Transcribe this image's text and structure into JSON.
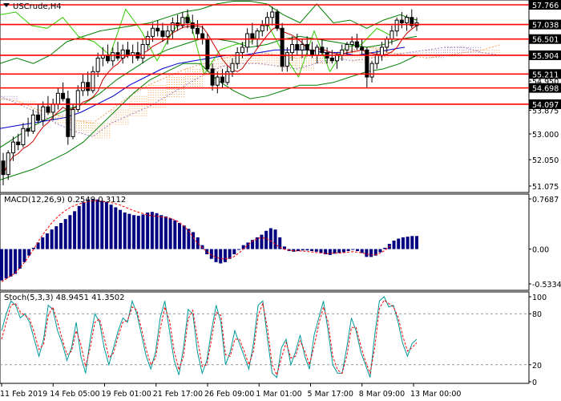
{
  "chart_data": [
    {
      "type": "line",
      "pane": "main",
      "title": "USCrude,H4",
      "price_axis": {
        "ticks": [
          "57.766",
          "57.038",
          "56.501",
          "55.904",
          "55.211",
          "54.950",
          "54.698",
          "54.097",
          "53.875",
          "53.000",
          "52.050",
          "51.075"
        ],
        "boxed": [
          "57.766",
          "57.038",
          "56.501",
          "55.904",
          "55.211",
          "54.698",
          "54.097"
        ],
        "ylim": [
          51.075,
          57.766
        ]
      },
      "horizontal_levels": [
        57.766,
        57.038,
        56.501,
        55.904,
        55.211,
        54.698,
        54.097
      ],
      "candles": [
        [
          52.0,
          52.3,
          51.1,
          51.5
        ],
        [
          51.5,
          52.4,
          51.3,
          52.3
        ],
        [
          52.3,
          52.9,
          52.0,
          52.7
        ],
        [
          52.7,
          53.0,
          52.4,
          52.6
        ],
        [
          52.6,
          53.4,
          52.5,
          53.2
        ],
        [
          53.2,
          53.6,
          52.9,
          53.1
        ],
        [
          53.1,
          53.9,
          53.0,
          53.7
        ],
        [
          53.7,
          54.1,
          53.4,
          53.5
        ],
        [
          53.5,
          54.2,
          53.3,
          54.0
        ],
        [
          54.0,
          54.4,
          53.7,
          53.8
        ],
        [
          53.8,
          54.3,
          53.5,
          54.1
        ],
        [
          54.1,
          54.7,
          53.9,
          54.5
        ],
        [
          54.5,
          54.9,
          54.2,
          54.3
        ],
        [
          54.3,
          54.6,
          52.6,
          52.9
        ],
        [
          52.9,
          54.1,
          52.8,
          53.9
        ],
        [
          53.9,
          54.8,
          53.8,
          54.6
        ],
        [
          54.6,
          55.2,
          54.4,
          54.9
        ],
        [
          54.9,
          55.3,
          54.4,
          54.6
        ],
        [
          54.6,
          55.5,
          54.5,
          55.3
        ],
        [
          55.3,
          56.0,
          55.1,
          55.8
        ],
        [
          55.8,
          56.2,
          55.5,
          55.9
        ],
        [
          55.9,
          56.3,
          55.6,
          55.7
        ],
        [
          55.7,
          56.2,
          55.5,
          56.0
        ],
        [
          56.0,
          56.4,
          55.7,
          55.8
        ],
        [
          55.8,
          56.3,
          55.6,
          56.1
        ],
        [
          56.1,
          56.4,
          55.8,
          55.9
        ],
        [
          55.9,
          56.3,
          55.6,
          56.0
        ],
        [
          56.0,
          56.4,
          55.7,
          55.8
        ],
        [
          55.8,
          56.5,
          55.6,
          56.3
        ],
        [
          56.3,
          56.8,
          56.1,
          56.6
        ],
        [
          56.6,
          57.1,
          56.4,
          56.9
        ],
        [
          56.9,
          57.2,
          56.6,
          56.8
        ],
        [
          56.8,
          57.1,
          56.4,
          56.6
        ],
        [
          56.6,
          57.0,
          56.3,
          56.8
        ],
        [
          56.8,
          57.3,
          56.5,
          57.1
        ],
        [
          57.1,
          57.4,
          56.8,
          57.0
        ],
        [
          57.0,
          57.5,
          56.9,
          57.3
        ],
        [
          57.3,
          57.6,
          56.9,
          57.1
        ],
        [
          57.1,
          57.4,
          56.7,
          56.9
        ],
        [
          56.9,
          57.2,
          56.5,
          56.7
        ],
        [
          56.7,
          57.0,
          56.3,
          56.5
        ],
        [
          56.5,
          56.7,
          55.3,
          55.4
        ],
        [
          55.4,
          55.6,
          54.6,
          54.8
        ],
        [
          54.8,
          55.3,
          54.5,
          55.1
        ],
        [
          55.1,
          55.4,
          54.7,
          54.9
        ],
        [
          54.9,
          55.5,
          54.8,
          55.3
        ],
        [
          55.3,
          55.8,
          55.1,
          55.6
        ],
        [
          55.6,
          56.2,
          55.4,
          56.0
        ],
        [
          56.0,
          56.4,
          55.8,
          56.2
        ],
        [
          56.2,
          56.9,
          56.0,
          56.7
        ],
        [
          56.7,
          57.1,
          56.3,
          56.5
        ],
        [
          56.5,
          56.9,
          56.2,
          56.8
        ],
        [
          56.8,
          57.2,
          56.6,
          57.0
        ],
        [
          57.0,
          57.5,
          56.8,
          57.3
        ],
        [
          57.3,
          57.7,
          57.0,
          57.5
        ],
        [
          57.5,
          57.6,
          56.8,
          56.9
        ],
        [
          56.9,
          57.1,
          55.3,
          55.5
        ],
        [
          55.5,
          56.2,
          55.3,
          56.0
        ],
        [
          56.0,
          56.6,
          55.7,
          56.3
        ],
        [
          56.3,
          56.7,
          55.9,
          56.1
        ],
        [
          56.1,
          56.5,
          55.8,
          56.3
        ],
        [
          56.3,
          56.6,
          55.9,
          56.1
        ],
        [
          56.1,
          56.4,
          55.8,
          55.9
        ],
        [
          55.9,
          56.3,
          55.6,
          56.2
        ],
        [
          56.2,
          56.5,
          55.9,
          56.0
        ],
        [
          56.0,
          56.2,
          55.6,
          55.8
        ],
        [
          55.8,
          56.1,
          55.6,
          55.7
        ],
        [
          55.7,
          56.0,
          55.4,
          55.9
        ],
        [
          55.9,
          56.3,
          55.7,
          56.1
        ],
        [
          56.1,
          56.4,
          55.9,
          56.3
        ],
        [
          56.3,
          56.6,
          56.0,
          56.4
        ],
        [
          56.4,
          56.7,
          56.1,
          56.2
        ],
        [
          56.2,
          56.5,
          55.9,
          56.1
        ],
        [
          56.1,
          56.2,
          54.7,
          55.1
        ],
        [
          55.1,
          55.7,
          54.9,
          55.6
        ],
        [
          55.6,
          56.1,
          55.4,
          55.9
        ],
        [
          55.9,
          56.4,
          55.7,
          56.2
        ],
        [
          56.2,
          56.6,
          56.0,
          56.5
        ],
        [
          56.5,
          57.0,
          56.3,
          56.8
        ],
        [
          56.8,
          57.3,
          56.6,
          57.2
        ],
        [
          57.2,
          57.5,
          56.9,
          57.1
        ],
        [
          57.1,
          57.4,
          56.8,
          57.3
        ],
        [
          57.3,
          57.6,
          56.9,
          57.0
        ],
        [
          57.0,
          57.3,
          56.8,
          57.1
        ]
      ],
      "bollinger": {
        "upper": [
          55.6,
          55.8,
          55.6,
          55.9,
          56.4,
          56.6,
          56.8,
          56.9,
          57.0,
          57.1,
          57.3,
          57.5,
          57.6,
          57.8,
          57.9,
          57.9,
          57.8,
          57.4,
          57.1,
          57.8,
          57.1,
          57.2,
          56.9,
          57.2,
          57.4,
          57.2
        ],
        "middle": [
          52.5,
          52.9,
          53.3,
          53.6,
          53.9,
          54.1,
          54.5,
          55.0,
          55.4,
          55.8,
          56.1,
          56.3,
          56.5,
          56.5,
          56.4,
          56.2,
          56.3,
          56.5,
          56.6,
          56.5,
          56.4,
          56.3,
          56.2,
          56.3,
          56.5,
          56.6
        ],
        "lower": [
          51.3,
          51.5,
          51.7,
          52.0,
          52.3,
          52.7,
          53.3,
          53.9,
          54.5,
          55.0,
          55.3,
          55.6,
          55.6,
          55.0,
          54.6,
          54.3,
          54.4,
          54.6,
          54.8,
          54.8,
          54.9,
          55.1,
          55.3,
          55.4,
          55.6,
          55.9
        ]
      },
      "ichimoku_cloud": {
        "span_a": [
          54.3,
          54.2,
          53.9,
          53.7,
          53.5,
          53.4,
          53.9,
          54.4,
          54.8,
          55.1,
          55.4,
          55.6,
          55.8,
          55.9,
          56.0,
          55.9,
          55.8,
          55.9,
          56.0,
          56.1,
          56.2,
          56.0,
          55.9,
          55.8,
          55.9,
          56.0,
          56.1,
          56.3
        ],
        "span_b": [
          54.4,
          54.1,
          53.8,
          53.4,
          53.1,
          52.9,
          53.4,
          53.7,
          54.0,
          54.4,
          54.8,
          55.2,
          55.5,
          55.6,
          55.6,
          55.5,
          55.4,
          55.6,
          55.8,
          55.7,
          55.8,
          55.9,
          56.0,
          56.1,
          56.2,
          56.2,
          56.0,
          55.9
        ]
      },
      "ma_blue": [
        53.2,
        53.3,
        53.4,
        53.5,
        53.6,
        53.8,
        54.1,
        54.4,
        54.8,
        55.1,
        55.4,
        55.6,
        55.7,
        55.8,
        55.9,
        55.9,
        56.0,
        56.1,
        56.1,
        56.1,
        56.0,
        56.0,
        55.9,
        56.0,
        56.1,
        56.2
      ],
      "lime_line": [
        57.4,
        57.5,
        57.0,
        56.9,
        57.3,
        56.6,
        56.4,
        55.9,
        57.6,
        56.8,
        55.7,
        56.8,
        57.4,
        55.2,
        56.1,
        56.3,
        56.4,
        57.1,
        56.0,
        55.1,
        56.8,
        55.3,
        56.2,
        56.3,
        56.9,
        56.6
      ],
      "x_labels": [
        "11 Feb 2019",
        "14 Feb 05:00",
        "19 Feb 01:00",
        "21 Feb 17:00",
        "26 Feb 09:00",
        "1 Mar 01:00",
        "5 Mar 17:00",
        "8 Mar 09:00",
        "13 Mar 00:00"
      ]
    },
    {
      "type": "bar",
      "pane": "macd",
      "title": "MACD(12,26,9) 0.2549 0.3112",
      "y_ticks": [
        "0.7687",
        "0.00",
        "-0.5334"
      ],
      "ylim": [
        -0.5334,
        0.7687
      ],
      "histogram": [
        -0.48,
        -0.45,
        -0.42,
        -0.38,
        -0.3,
        -0.2,
        -0.1,
        0.02,
        0.1,
        0.18,
        0.24,
        0.3,
        0.35,
        0.4,
        0.46,
        0.52,
        0.58,
        0.66,
        0.72,
        0.76,
        0.77,
        0.76,
        0.74,
        0.72,
        0.68,
        0.64,
        0.6,
        0.56,
        0.54,
        0.52,
        0.51,
        0.53,
        0.56,
        0.57,
        0.55,
        0.52,
        0.5,
        0.47,
        0.44,
        0.4,
        0.36,
        0.31,
        0.26,
        0.18,
        0.06,
        -0.08,
        -0.15,
        -0.2,
        -0.22,
        -0.2,
        -0.15,
        -0.08,
        0.0,
        0.06,
        0.1,
        0.14,
        0.18,
        0.22,
        0.28,
        0.32,
        0.3,
        0.18,
        0.04,
        -0.03,
        -0.04,
        -0.03,
        -0.02,
        -0.02,
        -0.03,
        -0.04,
        -0.06,
        -0.08,
        -0.09,
        -0.07,
        -0.06,
        -0.05,
        -0.03,
        -0.01,
        -0.03,
        -0.06,
        -0.12,
        -0.12,
        -0.1,
        -0.05,
        0.02,
        0.08,
        0.13,
        0.16,
        0.18,
        0.19,
        0.2,
        0.2
      ],
      "signal": [
        -0.5,
        -0.44,
        -0.38,
        -0.28,
        -0.16,
        -0.02,
        0.14,
        0.28,
        0.4,
        0.5,
        0.58,
        0.64,
        0.68,
        0.71,
        0.73,
        0.74,
        0.73,
        0.72,
        0.7,
        0.67,
        0.63,
        0.59,
        0.56,
        0.53,
        0.51,
        0.5,
        0.49,
        0.47,
        0.43,
        0.36,
        0.26,
        0.12,
        0.02,
        -0.06,
        -0.12,
        -0.15,
        -0.15,
        -0.12,
        -0.05,
        0.04,
        0.12,
        0.17,
        0.17,
        0.12,
        0.05,
        0.0,
        -0.02,
        -0.03,
        -0.03,
        -0.04,
        -0.05,
        -0.06,
        -0.07,
        -0.06,
        -0.06,
        -0.05,
        -0.04,
        -0.05,
        -0.07,
        -0.09,
        -0.08,
        -0.03,
        0.05
      ]
    },
    {
      "type": "line",
      "pane": "stochastic",
      "title": "Stoch(5,3,3) 48.9451 41.3502",
      "y_ticks": [
        "100",
        "80",
        "20",
        "0"
      ],
      "ylim": [
        0,
        100
      ],
      "levels": [
        80,
        20
      ],
      "main": [
        60,
        80,
        95,
        90,
        75,
        80,
        70,
        50,
        30,
        50,
        90,
        85,
        60,
        45,
        25,
        40,
        70,
        30,
        10,
        50,
        80,
        70,
        40,
        20,
        40,
        60,
        75,
        70,
        95,
        80,
        55,
        30,
        15,
        35,
        75,
        95,
        60,
        25,
        8,
        40,
        85,
        80,
        35,
        10,
        25,
        60,
        90,
        70,
        20,
        35,
        60,
        45,
        30,
        15,
        45,
        90,
        95,
        50,
        10,
        5,
        40,
        50,
        20,
        35,
        55,
        30,
        15,
        55,
        75,
        95,
        60,
        20,
        10,
        10,
        40,
        75,
        60,
        35,
        20,
        5,
        55,
        95,
        100,
        88,
        90,
        70,
        45,
        30,
        45,
        50
      ],
      "signal": [
        50,
        70,
        90,
        92,
        82,
        78,
        74,
        58,
        38,
        44,
        78,
        88,
        70,
        50,
        32,
        36,
        60,
        44,
        18,
        40,
        70,
        74,
        52,
        28,
        34,
        54,
        70,
        72,
        88,
        84,
        62,
        38,
        20,
        28,
        62,
        88,
        72,
        36,
        14,
        30,
        74,
        84,
        50,
        18,
        20,
        50,
        82,
        78,
        32,
        30,
        50,
        50,
        36,
        20,
        36,
        78,
        92,
        62,
        20,
        8,
        28,
        46,
        28,
        30,
        48,
        36,
        20,
        42,
        68,
        88,
        70,
        30,
        14,
        10,
        30,
        64,
        64,
        42,
        24,
        10,
        40,
        86,
        96,
        92,
        88,
        76,
        54,
        36,
        40,
        46
      ],
      "x_labels": [
        "11 Feb 2019",
        "14 Feb 05:00",
        "19 Feb 01:00",
        "21 Feb 17:00",
        "26 Feb 09:00",
        "1 Mar 01:00",
        "5 Mar 17:00",
        "8 Mar 09:00",
        "13 Mar 00:00"
      ]
    }
  ],
  "colors": {
    "background": "#ffffff",
    "horizontal_level": "#ff0000",
    "bollinger": "#008000",
    "lime_line": "#33cc00",
    "ma_blue": "#0000cc",
    "ma_red": "#cc0000",
    "cloud_up": "#f0a050",
    "cloud_down": "#a080c0",
    "candle": "#000000",
    "macd_bar": "#000080",
    "macd_signal": "#ff0000",
    "stoch_main": "#009999",
    "stoch_signal": "#ff0000",
    "axis_text": "#000000"
  }
}
